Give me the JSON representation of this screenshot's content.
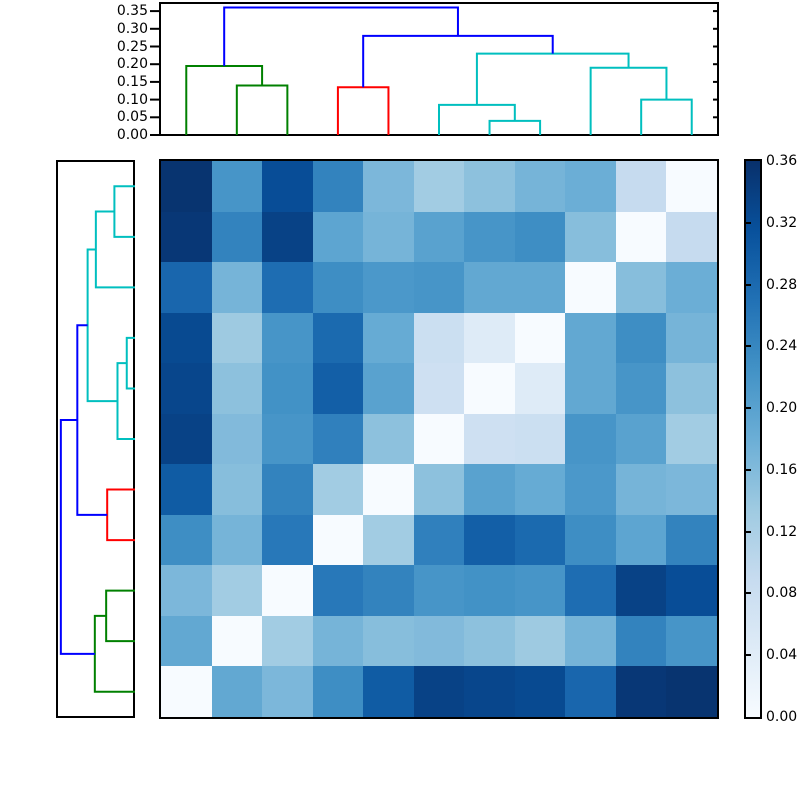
{
  "figure": {
    "background": "#ffffff"
  },
  "chart_data": {
    "type": "heatmap",
    "subtype": "clustermap",
    "title": "",
    "colormap": {
      "name": "Blues",
      "anchors": [
        [
          0.0,
          "#f7fbff"
        ],
        [
          0.125,
          "#deebf7"
        ],
        [
          0.25,
          "#c6dbef"
        ],
        [
          0.375,
          "#9ecae1"
        ],
        [
          0.5,
          "#6baed6"
        ],
        [
          0.625,
          "#4292c6"
        ],
        [
          0.75,
          "#2171b5"
        ],
        [
          0.875,
          "#08519c"
        ],
        [
          1.0,
          "#08306b"
        ]
      ]
    },
    "vmin": 0.0,
    "vmax": 0.36,
    "heatmap": {
      "n": 11,
      "col_order": [
        1,
        2,
        3,
        4,
        5,
        6,
        7,
        8,
        9,
        10,
        11
      ],
      "row_order": [
        11,
        10,
        9,
        8,
        7,
        6,
        5,
        4,
        3,
        2,
        1
      ],
      "distance_matrix": [
        [
          0,
          0.19,
          0.165,
          0.23,
          0.3,
          0.335,
          0.33,
          0.325,
          0.285,
          0.35,
          0.355
        ],
        [
          0.19,
          0,
          0.13,
          0.17,
          0.155,
          0.16,
          0.15,
          0.135,
          0.17,
          0.245,
          0.22
        ],
        [
          0.165,
          0.13,
          0,
          0.26,
          0.245,
          0.22,
          0.225,
          0.22,
          0.275,
          0.335,
          0.32
        ],
        [
          0.23,
          0.17,
          0.26,
          0,
          0.13,
          0.25,
          0.295,
          0.28,
          0.23,
          0.195,
          0.245
        ],
        [
          0.3,
          0.155,
          0.245,
          0.13,
          0,
          0.15,
          0.2,
          0.185,
          0.215,
          0.17,
          0.165
        ],
        [
          0.335,
          0.16,
          0.22,
          0.25,
          0.15,
          0,
          0.075,
          0.08,
          0.22,
          0.2,
          0.13
        ],
        [
          0.33,
          0.15,
          0.225,
          0.295,
          0.2,
          0.075,
          0,
          0.045,
          0.19,
          0.22,
          0.15
        ],
        [
          0.325,
          0.135,
          0.22,
          0.28,
          0.185,
          0.08,
          0.045,
          0,
          0.19,
          0.23,
          0.17
        ],
        [
          0.285,
          0.17,
          0.275,
          0.23,
          0.215,
          0.22,
          0.19,
          0.19,
          0,
          0.155,
          0.18
        ],
        [
          0.35,
          0.245,
          0.335,
          0.195,
          0.17,
          0.2,
          0.22,
          0.23,
          0.155,
          0,
          0.09
        ],
        [
          0.355,
          0.22,
          0.32,
          0.245,
          0.165,
          0.13,
          0.15,
          0.17,
          0.18,
          0.09,
          0
        ]
      ]
    },
    "dendrogram": {
      "colors": {
        "blue": "#0000ff",
        "green": "#008000",
        "red": "#ff0000",
        "cyan": "#00bfbf"
      },
      "links": [
        {
          "id": "G1",
          "children": [
            "L2",
            "L3"
          ],
          "height": 0.14,
          "color": "green"
        },
        {
          "id": "G2",
          "children": [
            "L1",
            "G1"
          ],
          "height": 0.195,
          "color": "green"
        },
        {
          "id": "R1",
          "children": [
            "L4",
            "L5"
          ],
          "height": 0.135,
          "color": "red"
        },
        {
          "id": "C1",
          "children": [
            "L7",
            "L8"
          ],
          "height": 0.04,
          "color": "cyan"
        },
        {
          "id": "C2",
          "children": [
            "L6",
            "C1"
          ],
          "height": 0.085,
          "color": "cyan"
        },
        {
          "id": "C3",
          "children": [
            "L10",
            "L11"
          ],
          "height": 0.1,
          "color": "cyan"
        },
        {
          "id": "C4",
          "children": [
            "L9",
            "C3"
          ],
          "height": 0.19,
          "color": "cyan"
        },
        {
          "id": "C5",
          "children": [
            "C2",
            "C4"
          ],
          "height": 0.23,
          "color": "cyan"
        },
        {
          "id": "B1",
          "children": [
            "R1",
            "C5"
          ],
          "height": 0.28,
          "color": "blue"
        },
        {
          "id": "B2",
          "children": [
            "G2",
            "B1"
          ],
          "height": 0.36,
          "color": "blue"
        }
      ]
    },
    "top_axis": {
      "tick_labels": [
        "0.00",
        "0.05",
        "0.10",
        "0.15",
        "0.20",
        "0.25",
        "0.30",
        "0.35"
      ],
      "tick_values": [
        0.0,
        0.05,
        0.1,
        0.15,
        0.2,
        0.25,
        0.3,
        0.35
      ]
    },
    "colorbar": {
      "tick_labels": [
        "0.36",
        "0.32",
        "0.28",
        "0.24",
        "0.20",
        "0.16",
        "0.12",
        "0.08",
        "0.04",
        "0.00"
      ],
      "tick_values": [
        0.36,
        0.32,
        0.28,
        0.24,
        0.2,
        0.16,
        0.12,
        0.08,
        0.04,
        0.0
      ],
      "inner_tick_values": [
        0.32,
        0.28,
        0.24,
        0.2,
        0.16,
        0.12,
        0.08,
        0.04
      ]
    }
  }
}
